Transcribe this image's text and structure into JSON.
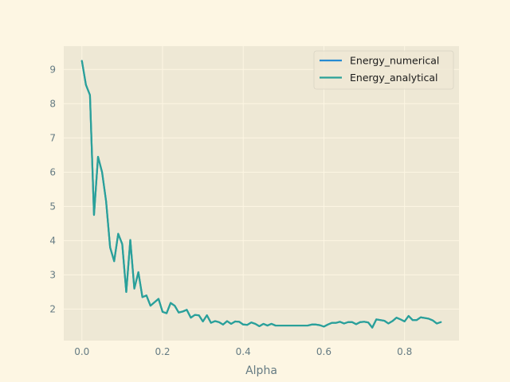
{
  "chart_data": {
    "type": "line",
    "title": "",
    "xlabel": "Alpha",
    "ylabel": "",
    "xlim": [
      -0.045,
      0.935
    ],
    "ylim": [
      1.08,
      9.68
    ],
    "xticks": [
      0.0,
      0.2,
      0.4,
      0.6,
      0.8
    ],
    "xtick_labels": [
      "0.0",
      "0.2",
      "0.4",
      "0.6",
      "0.8"
    ],
    "yticks": [
      2,
      3,
      4,
      5,
      6,
      7,
      8,
      9
    ],
    "ytick_labels": [
      "2",
      "3",
      "4",
      "5",
      "6",
      "7",
      "8",
      "9"
    ],
    "grid": true,
    "legend_position": "top-right",
    "colors": {
      "page_bg": "#fdf6e3",
      "plot_bg": "#eee8d5",
      "grid": "#fdf6e3",
      "tick_label": "#657b83"
    },
    "x": [
      0.0,
      0.01,
      0.02,
      0.03,
      0.04,
      0.05,
      0.06,
      0.07,
      0.08,
      0.09,
      0.1,
      0.11,
      0.12,
      0.13,
      0.14,
      0.15,
      0.16,
      0.17,
      0.18,
      0.19,
      0.2,
      0.21,
      0.22,
      0.23,
      0.24,
      0.25,
      0.26,
      0.27,
      0.28,
      0.29,
      0.3,
      0.31,
      0.32,
      0.33,
      0.34,
      0.35,
      0.36,
      0.37,
      0.38,
      0.39,
      0.4,
      0.41,
      0.42,
      0.43,
      0.44,
      0.45,
      0.46,
      0.47,
      0.48,
      0.49,
      0.5,
      0.51,
      0.52,
      0.53,
      0.54,
      0.55,
      0.56,
      0.57,
      0.58,
      0.59,
      0.6,
      0.61,
      0.62,
      0.63,
      0.64,
      0.65,
      0.66,
      0.67,
      0.68,
      0.69,
      0.7,
      0.71,
      0.72,
      0.73,
      0.74,
      0.75,
      0.76,
      0.77,
      0.78,
      0.79,
      0.8,
      0.81,
      0.82,
      0.83,
      0.84,
      0.85,
      0.86,
      0.87,
      0.88,
      0.89
    ],
    "series": [
      {
        "name": "Energy_numerical",
        "color": "#268bd2",
        "values": [
          9.25,
          8.55,
          8.25,
          4.75,
          6.45,
          6.0,
          5.15,
          3.8,
          3.4,
          4.2,
          3.9,
          2.5,
          4.02,
          2.6,
          3.08,
          2.35,
          2.4,
          2.1,
          2.2,
          2.3,
          1.92,
          1.88,
          2.18,
          2.1,
          1.9,
          1.93,
          1.98,
          1.75,
          1.83,
          1.82,
          1.64,
          1.82,
          1.6,
          1.65,
          1.62,
          1.55,
          1.65,
          1.57,
          1.64,
          1.63,
          1.55,
          1.54,
          1.61,
          1.57,
          1.5,
          1.57,
          1.52,
          1.57,
          1.52,
          1.52,
          1.52,
          1.52,
          1.52,
          1.52,
          1.52,
          1.52,
          1.52,
          1.55,
          1.55,
          1.53,
          1.49,
          1.55,
          1.6,
          1.6,
          1.63,
          1.58,
          1.62,
          1.62,
          1.56,
          1.62,
          1.63,
          1.61,
          1.46,
          1.7,
          1.68,
          1.66,
          1.58,
          1.65,
          1.75,
          1.7,
          1.64,
          1.8,
          1.68,
          1.68,
          1.76,
          1.74,
          1.72,
          1.67,
          1.58,
          1.62
        ]
      },
      {
        "name": "Energy_analytical",
        "color": "#2aa198",
        "values": [
          9.25,
          8.55,
          8.25,
          4.75,
          6.45,
          6.0,
          5.15,
          3.8,
          3.4,
          4.2,
          3.9,
          2.5,
          4.02,
          2.6,
          3.08,
          2.35,
          2.4,
          2.1,
          2.2,
          2.3,
          1.92,
          1.88,
          2.18,
          2.1,
          1.9,
          1.93,
          1.98,
          1.75,
          1.83,
          1.82,
          1.64,
          1.82,
          1.6,
          1.65,
          1.62,
          1.55,
          1.65,
          1.57,
          1.64,
          1.63,
          1.55,
          1.54,
          1.61,
          1.57,
          1.5,
          1.57,
          1.52,
          1.57,
          1.52,
          1.52,
          1.52,
          1.52,
          1.52,
          1.52,
          1.52,
          1.52,
          1.52,
          1.55,
          1.55,
          1.53,
          1.49,
          1.55,
          1.6,
          1.6,
          1.63,
          1.58,
          1.62,
          1.62,
          1.56,
          1.62,
          1.63,
          1.61,
          1.46,
          1.7,
          1.68,
          1.66,
          1.58,
          1.65,
          1.75,
          1.7,
          1.64,
          1.8,
          1.68,
          1.68,
          1.76,
          1.74,
          1.72,
          1.67,
          1.58,
          1.62
        ]
      }
    ]
  }
}
